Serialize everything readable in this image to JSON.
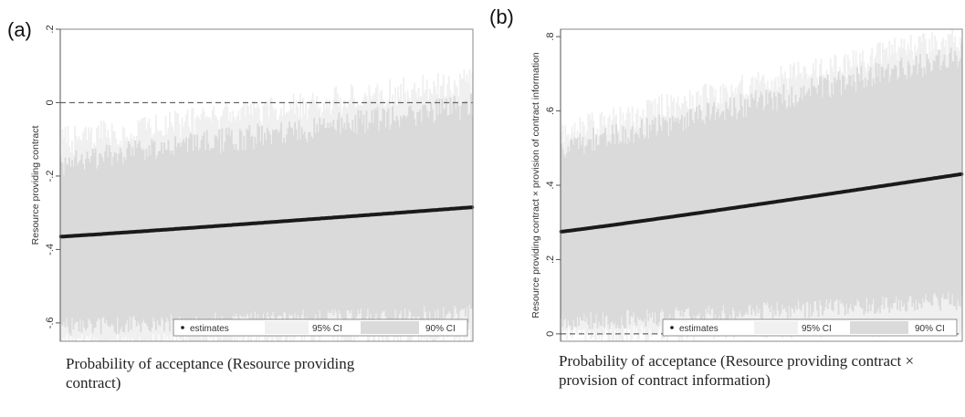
{
  "chart_data": [
    {
      "panel_label": "(a)",
      "type": "scatter",
      "ylabel": "Resource providing contract",
      "caption": "Probability of acceptance (Resource providing contract)",
      "ylim": [
        -0.65,
        0.2
      ],
      "yticks": [
        "-.6",
        "-.4",
        "-.2",
        "0",
        ".2"
      ],
      "reference_line": 0,
      "n_estimates": 300,
      "estimates_range": [
        -0.365,
        -0.285
      ],
      "ci90_range_lower": [
        -0.61,
        -0.575
      ],
      "ci90_range_upper": [
        -0.165,
        -0.01
      ],
      "ci95_range_lower": [
        -0.655,
        -0.63
      ],
      "ci95_range_upper": [
        -0.105,
        0.06
      ],
      "series": [
        {
          "name": "estimates",
          "color": "#1a1a1a"
        },
        {
          "name": "95% CI",
          "color": "#f0f0f0"
        },
        {
          "name": "90% CI",
          "color": "#dadada"
        }
      ],
      "legend_position": "bottom-right"
    },
    {
      "panel_label": "(b)",
      "type": "scatter",
      "ylabel": "Resource providing contract × provision of contract information",
      "caption": "Probability of acceptance (Resource providing contract × provision of contract information)",
      "ylim": [
        -0.02,
        0.82
      ],
      "yticks": [
        "0",
        ".2",
        ".4",
        ".6",
        ".8"
      ],
      "reference_line": 0,
      "n_estimates": 300,
      "estimates_range": [
        0.275,
        0.43
      ],
      "ci90_range_lower": [
        0.03,
        0.09
      ],
      "ci90_range_upper": [
        0.5,
        0.75
      ],
      "ci95_range_lower": [
        -0.005,
        0.02
      ],
      "ci95_range_upper": [
        0.54,
        0.8
      ],
      "series": [
        {
          "name": "estimates",
          "color": "#1a1a1a"
        },
        {
          "name": "95% CI",
          "color": "#f0f0f0"
        },
        {
          "name": "90% CI",
          "color": "#dadada"
        }
      ],
      "legend_position": "bottom-right"
    }
  ]
}
